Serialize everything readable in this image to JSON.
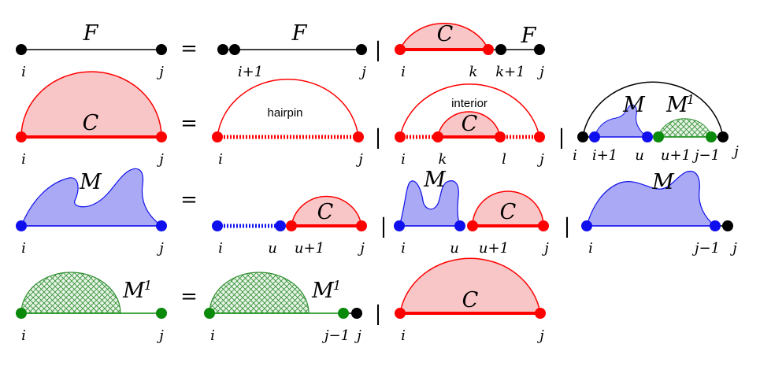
{
  "symbols": {
    "F": "F",
    "C": "C",
    "M": "M",
    "M1_base": "M",
    "M1_sup": "1",
    "equals": "=",
    "bar": "|"
  },
  "labels": {
    "i": "i",
    "j": "j",
    "i_plus_1": "i+1",
    "k": "k",
    "k_plus_1": "k+1",
    "l": "l",
    "u": "u",
    "u_plus_1": "u+1",
    "j_minus_1": "j−1",
    "hairpin": "hairpin",
    "interior": "interior"
  },
  "colors": {
    "black": "#000000",
    "red": "#ff0000",
    "pink_fill": "#f8c6c6",
    "blue": "#1010ee",
    "blue_fill": "#a9a9f5",
    "green": "#0a8a0a",
    "green_hatch": "#2f8f2f"
  }
}
